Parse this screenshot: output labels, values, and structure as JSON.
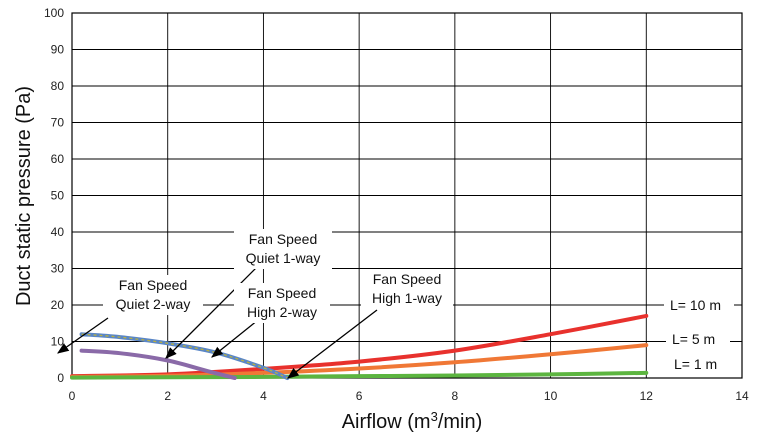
{
  "chart_data": {
    "type": "line",
    "xlabel": "Airflow (m",
    "xlabel_sup": "3",
    "xlabel_tail": "/min)",
    "ylabel": "Duct static pressure (Pa)",
    "xlim": [
      0,
      14
    ],
    "ylim": [
      0,
      100
    ],
    "xticks": [
      "0",
      "2",
      "4",
      "6",
      "8",
      "10",
      "12",
      "14"
    ],
    "yticks": [
      "0",
      "10",
      "20",
      "30",
      "40",
      "50",
      "60",
      "70",
      "80",
      "90",
      "100"
    ],
    "grid": true,
    "series": [
      {
        "name": "L= 10 m",
        "color": "#e8312d",
        "x": [
          0,
          2,
          4,
          6,
          8,
          10,
          12
        ],
        "y": [
          0.5,
          1.0,
          2.5,
          4.5,
          7.5,
          12.0,
          17.0
        ]
      },
      {
        "name": "L= 5 m",
        "color": "#f07836",
        "x": [
          0,
          2,
          4,
          6,
          8,
          10,
          12
        ],
        "y": [
          0.3,
          0.6,
          1.4,
          2.6,
          4.3,
          6.5,
          9.0
        ]
      },
      {
        "name": "L= 1 m",
        "color": "#5cb540",
        "x": [
          0,
          2,
          4,
          6,
          8,
          10,
          12
        ],
        "y": [
          0.1,
          0.2,
          0.3,
          0.5,
          0.7,
          1.0,
          1.4
        ]
      },
      {
        "name": "",
        "color": "#8a6aa8",
        "x": [
          0.2,
          1.0,
          2.0,
          2.8,
          3.4
        ],
        "y": [
          7.5,
          6.8,
          4.8,
          2.0,
          0.0
        ]
      },
      {
        "name": "",
        "color": "#5a86c6",
        "x": [
          0.2,
          1.0,
          2.0,
          3.0,
          4.0,
          4.5
        ],
        "y": [
          12.0,
          11.2,
          9.5,
          7.0,
          2.8,
          0.0
        ]
      }
    ],
    "annotations": [
      {
        "lines": [
          "Fan Speed",
          "Quiet 1-way"
        ]
      },
      {
        "lines": [
          "Fan Speed",
          "Quiet 2-way"
        ]
      },
      {
        "lines": [
          "Fan Speed",
          "High 2-way"
        ]
      },
      {
        "lines": [
          "Fan Speed",
          "High 1-way"
        ]
      }
    ]
  }
}
